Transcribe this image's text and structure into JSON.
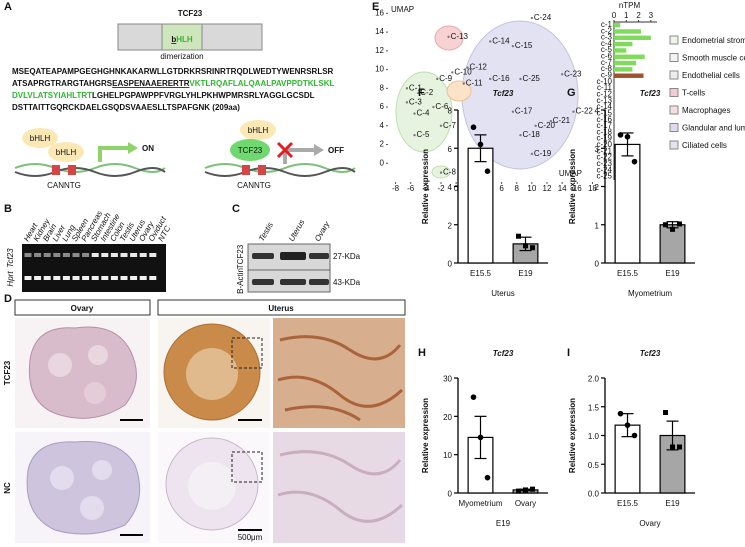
{
  "panels": {
    "A": {
      "label": "A",
      "title": "TCF23",
      "domain_prefix": "b",
      "domain_suffix": "HLH",
      "domain_caption": "dimerization",
      "sequence": [
        [
          {
            "text": "MSEQATEAPAMPGEGHGHNKAKARWLLGTDRKRSRINRTRQDLWEDTYWENRSRLSR",
            "style": "plain"
          }
        ],
        [
          {
            "text": "ATSAPRGTRARGTAHGRS",
            "style": "plain"
          },
          {
            "text": "EASPENAAERERTR",
            "style": "underline"
          },
          {
            "text": "VKTLRQAFLALQAALPAVPPDTKLSKL",
            "style": "green"
          }
        ],
        [
          {
            "text": "DVLVLATSYIAHLTRT",
            "style": "green"
          },
          {
            "text": "LGHELPGPAWPPFVRGLYHLPKHWPMRSRLYAGGLGCSDL",
            "style": "plain"
          }
        ],
        [
          {
            "text": "DSTTAITTGQRCKDAELGSQDSVAAESLLTSPAFGNK (209aa)",
            "style": "plain"
          }
        ]
      ],
      "left_diagram": {
        "partners": [
          "bHLH",
          "bHLH"
        ],
        "motif": "CANNTG",
        "state": "ON"
      },
      "right_diagram": {
        "partners": [
          "bHLH",
          "TCF23"
        ],
        "motif": "CANNTG",
        "state": "OFF"
      }
    },
    "B": {
      "label": "B",
      "lanes": [
        "Heart",
        "Kidney",
        "Brain",
        "Liver",
        "Lung",
        "Spleen",
        "Pancreas",
        "Stomach",
        "Intestine",
        "Colon",
        "Testis",
        "Uterus",
        "Ovary",
        "Oviduct",
        "NTC"
      ],
      "rows": [
        "Tcf23",
        "Hprt"
      ]
    },
    "C": {
      "label": "C",
      "lanes": [
        "Testis",
        "Uterus",
        "Ovary"
      ],
      "rows": [
        "TCF23",
        "B-Actin"
      ],
      "sizes": [
        "27-KDa",
        "43-KDa"
      ]
    },
    "D": {
      "label": "D",
      "columns": [
        "Ovary",
        "Uterus"
      ],
      "rows": [
        "TCF23",
        "NC"
      ],
      "scale_bar": "500μm"
    },
    "E": {
      "label": "E",
      "x_axis_label": "UMAP",
      "y_axis_label": "UMAP",
      "xlim": [
        -9,
        19
      ],
      "ylim": [
        -2,
        17
      ],
      "xticks": [
        -8,
        -6,
        -4,
        -2,
        0,
        2,
        4,
        6,
        8,
        10,
        12,
        14,
        16,
        18
      ],
      "yticks": [
        0,
        2,
        4,
        6,
        8,
        10,
        12,
        14,
        16
      ],
      "clusters": [
        {
          "label": "C-1",
          "x": -6.5,
          "y": 8
        },
        {
          "label": "C-2",
          "x": -5,
          "y": 7.5
        },
        {
          "label": "C-3",
          "x": -6.5,
          "y": 6.5
        },
        {
          "label": "C-4",
          "x": -5.5,
          "y": 5.3
        },
        {
          "label": "C-5",
          "x": -5.5,
          "y": 3
        },
        {
          "label": "C-6",
          "x": -3,
          "y": 6
        },
        {
          "label": "C-7",
          "x": -2,
          "y": 4
        },
        {
          "label": "C-8",
          "x": -2,
          "y": -1
        },
        {
          "label": "C-9",
          "x": -2.5,
          "y": 9
        },
        {
          "label": "C-10",
          "x": -0.5,
          "y": 9.7
        },
        {
          "label": "C-11",
          "x": 1,
          "y": 8.5
        },
        {
          "label": "C-12",
          "x": 1.5,
          "y": 10.2
        },
        {
          "label": "C-13",
          "x": -1,
          "y": 13.5
        },
        {
          "label": "C-14",
          "x": 4.5,
          "y": 13
        },
        {
          "label": "C-15",
          "x": 7.5,
          "y": 12.5
        },
        {
          "label": "C-16",
          "x": 4.5,
          "y": 9
        },
        {
          "label": "C-17",
          "x": 7.5,
          "y": 5.5
        },
        {
          "label": "C-18",
          "x": 8.5,
          "y": 3
        },
        {
          "label": "C-19",
          "x": 10,
          "y": 1
        },
        {
          "label": "C-20",
          "x": 10.5,
          "y": 4
        },
        {
          "label": "C-21",
          "x": 12.5,
          "y": 4.5
        },
        {
          "label": "C-22",
          "x": 15.5,
          "y": 5.5
        },
        {
          "label": "C-23",
          "x": 14,
          "y": 9.5
        },
        {
          "label": "C-24",
          "x": 10,
          "y": 15.5
        },
        {
          "label": "C-25",
          "x": 8.5,
          "y": 9
        }
      ],
      "legend": [
        {
          "name": "Endometrial stromal cells",
          "color": "#eef5ea"
        },
        {
          "name": "Smooth muscle cells",
          "color": "#f2f2f2"
        },
        {
          "name": "Endothelial cells",
          "color": "#eeeeee"
        },
        {
          "name": "T-cells",
          "color": "#f4cccc"
        },
        {
          "name": "Macrophages",
          "color": "#f6dede"
        },
        {
          "name": "Glandular and luminal cells",
          "color": "#dcdcf0"
        },
        {
          "name": "Ciliated cells",
          "color": "#e3e3f3"
        }
      ]
    }
  },
  "chart_data": [
    {
      "type": "barh",
      "title": "nTPM",
      "categories": [
        "c-1",
        "c-2",
        "c-3",
        "c-4",
        "c-5",
        "c-6",
        "c-7",
        "c-8",
        "c-9",
        "c-10",
        "c-11",
        "c-12",
        "c-13",
        "c-14",
        "c-15",
        "c-16",
        "c-17",
        "c-18",
        "c-19",
        "c-20",
        "c-21",
        "c-22",
        "c-23",
        "c-24",
        "c-25"
      ],
      "values": [
        0.5,
        2.2,
        3.0,
        1.5,
        1.0,
        2.5,
        1.8,
        1.5,
        2.4,
        0,
        0,
        0,
        0,
        0,
        0,
        0,
        0,
        0,
        0,
        0,
        0,
        0,
        0,
        0,
        0
      ],
      "colors": [
        "#7fdc5a",
        "#7fdc5a",
        "#7fdc5a",
        "#7fdc5a",
        "#7fdc5a",
        "#7fdc5a",
        "#7fdc5a",
        "#7fdc5a",
        "#a0522d",
        "#7fdc5a",
        "#7fdc5a",
        "#7fdc5a",
        "#7fdc5a",
        "#7fdc5a",
        "#7fdc5a",
        "#7fdc5a",
        "#7fdc5a",
        "#7fdc5a",
        "#7fdc5a",
        "#7fdc5a",
        "#7fdc5a",
        "#7fdc5a",
        "#7fdc5a",
        "#7fdc5a",
        "#7fdc5a"
      ],
      "xlim": [
        0,
        3.5
      ],
      "xticks": [
        0,
        1,
        2,
        3
      ]
    },
    {
      "type": "bar",
      "label": "F",
      "title": "Tcf23",
      "y_label": "Relative expression",
      "x_label": "Uterus",
      "categories": [
        "E15.5",
        "E19"
      ],
      "values": [
        6.0,
        1.0
      ],
      "errors": [
        0.7,
        0.35
      ],
      "points": [
        [
          7.1,
          6.2,
          4.8
        ],
        [
          1.4,
          0.9,
          0.8
        ]
      ],
      "colors": [
        "#ffffff",
        "#a6a6a6"
      ],
      "markers": [
        "circle",
        "square"
      ],
      "ylim": [
        0,
        8
      ],
      "yticks": [
        0,
        2,
        4,
        6,
        8
      ]
    },
    {
      "type": "bar",
      "label": "G",
      "title": "Tcf23",
      "y_label": "Relative expression",
      "x_label": "Myometrium",
      "categories": [
        "E15.5",
        "E19"
      ],
      "values": [
        3.1,
        1.0
      ],
      "errors": [
        0.3,
        0.08
      ],
      "points": [
        [
          3.35,
          3.3,
          2.65
        ],
        [
          1.0,
          0.88,
          1.02
        ]
      ],
      "colors": [
        "#ffffff",
        "#a6a6a6"
      ],
      "markers": [
        "circle",
        "square"
      ],
      "ylim": [
        0,
        4
      ],
      "yticks": [
        0,
        1,
        2,
        3,
        4
      ]
    },
    {
      "type": "bar",
      "label": "H",
      "title": "Tcf23",
      "y_label": "Relative expression",
      "x_label": "E19",
      "categories": [
        "Myometrium",
        "Ovary"
      ],
      "values": [
        14.5,
        0.8
      ],
      "errors": [
        5.5,
        0.2
      ],
      "points": [
        [
          25,
          14.5,
          4
        ],
        [
          0.5,
          0.8,
          1.0
        ]
      ],
      "colors": [
        "#ffffff",
        "#a6a6a6"
      ],
      "markers": [
        "circle",
        "square"
      ],
      "ylim": [
        0,
        30
      ],
      "yticks": [
        0,
        10,
        20,
        30
      ]
    },
    {
      "type": "bar",
      "label": "I",
      "title": "Tcf23",
      "y_label": "Relative expression",
      "x_label": "Ovary",
      "categories": [
        "E15.5",
        "E19"
      ],
      "values": [
        1.18,
        1.0
      ],
      "errors": [
        0.2,
        0.25
      ],
      "points": [
        [
          1.38,
          1.18,
          1.0
        ],
        [
          1.4,
          0.8,
          0.8
        ]
      ],
      "colors": [
        "#ffffff",
        "#a6a6a6"
      ],
      "markers": [
        "circle",
        "square"
      ],
      "ylim": [
        0,
        2
      ],
      "yticks": [
        {
          "value": 0,
          "label": "0.0"
        },
        0.5,
        {
          "value": 1,
          "label": "1.0"
        },
        1.5,
        {
          "value": 2,
          "label": "2.0"
        }
      ]
    }
  ]
}
